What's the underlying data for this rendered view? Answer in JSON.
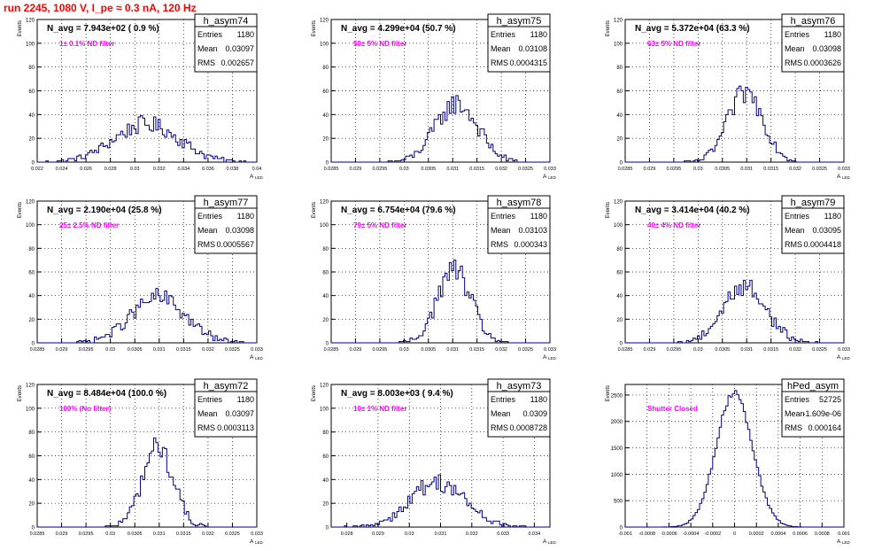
{
  "page_title": "run 2245,  1080 V, I_pe ≈ 0.3 nA, 120 Hz",
  "stats_labels": {
    "entries": "Entries",
    "mean": "Mean",
    "rms": "RMS"
  },
  "axis_text": {
    "ylabel": "Events",
    "xlabel": "A",
    "xlabel_sub": "LED"
  },
  "colors": {
    "title": "#ff0000",
    "annotation": "#ff00ff",
    "histogram": "#000080",
    "grid": "#000000"
  },
  "chart_data": [
    {
      "type": "histogram",
      "hist_name": "h_asym74",
      "summary": "N_avg = 7.943e+02 ( 0.9 %)",
      "annotation": "1± 0.1% ND filter",
      "entries": "1180",
      "mean": "0.03097",
      "rms": "0.002657",
      "xlim": [
        0.022,
        0.04
      ],
      "ylim": [
        0,
        120
      ],
      "yticks": [
        0,
        20,
        40,
        60,
        80,
        100,
        120
      ],
      "xticks": [
        "0.022",
        "0.024",
        "0.026",
        "0.028",
        "0.03",
        "0.032",
        "0.034",
        "0.036",
        "0.038",
        "0.04"
      ],
      "grid": true
    },
    {
      "type": "histogram",
      "hist_name": "h_asym75",
      "summary": "N_avg = 4.299e+04 (50.7 %)",
      "annotation": "50± 5% ND filter",
      "entries": "1180",
      "mean": "0.03108",
      "rms": "0.0004315",
      "xlim": [
        0.0285,
        0.033
      ],
      "ylim": [
        0,
        120
      ],
      "yticks": [
        0,
        20,
        40,
        60,
        80,
        100,
        120
      ],
      "xticks": [
        "0.0285",
        "0.029",
        "0.0295",
        "0.03",
        "0.0305",
        "0.031",
        "0.0315",
        "0.032",
        "0.0325",
        "0.033"
      ],
      "grid": true
    },
    {
      "type": "histogram",
      "hist_name": "h_asym76",
      "summary": "N_avg = 5.372e+04 (63.3 %)",
      "annotation": "63± 5% ND filter",
      "entries": "1180",
      "mean": "0.03098",
      "rms": "0.0003626",
      "xlim": [
        0.0285,
        0.033
      ],
      "ylim": [
        0,
        120
      ],
      "yticks": [
        0,
        20,
        40,
        60,
        80,
        100,
        120
      ],
      "xticks": [
        "0.0285",
        "0.029",
        "0.0295",
        "0.03",
        "0.0305",
        "0.031",
        "0.0315",
        "0.032",
        "0.0325",
        "0.033"
      ],
      "grid": true
    },
    {
      "type": "histogram",
      "hist_name": "h_asym77",
      "summary": "N_avg = 2.190e+04 (25.8 %)",
      "annotation": "25± 2.5% ND filter",
      "entries": "1180",
      "mean": "0.03098",
      "rms": "0.0005567",
      "xlim": [
        0.0285,
        0.033
      ],
      "ylim": [
        0,
        120
      ],
      "yticks": [
        0,
        20,
        40,
        60,
        80,
        100,
        120
      ],
      "xticks": [
        "0.0285",
        "0.029",
        "0.0295",
        "0.03",
        "0.0305",
        "0.031",
        "0.0315",
        "0.032",
        "0.0325",
        "0.033"
      ],
      "grid": true
    },
    {
      "type": "histogram",
      "hist_name": "h_asym78",
      "summary": "N_avg = 6.754e+04 (79.6 %)",
      "annotation": "79± 5% ND filter",
      "entries": "1180",
      "mean": "0.03103",
      "rms": "0.000343",
      "xlim": [
        0.0285,
        0.033
      ],
      "ylim": [
        0,
        120
      ],
      "yticks": [
        0,
        20,
        40,
        60,
        80,
        100,
        120
      ],
      "xticks": [
        "0.0285",
        "0.029",
        "0.0295",
        "0.03",
        "0.0305",
        "0.031",
        "0.0315",
        "0.032",
        "0.0325",
        "0.033"
      ],
      "grid": true
    },
    {
      "type": "histogram",
      "hist_name": "h_asym79",
      "summary": "N_avg = 3.414e+04 (40.2 %)",
      "annotation": "40± 4% ND filter",
      "entries": "1180",
      "mean": "0.03095",
      "rms": "0.0004418",
      "xlim": [
        0.0285,
        0.033
      ],
      "ylim": [
        0,
        120
      ],
      "yticks": [
        0,
        20,
        40,
        60,
        80,
        100,
        120
      ],
      "xticks": [
        "0.0285",
        "0.029",
        "0.0295",
        "0.03",
        "0.0305",
        "0.031",
        "0.0315",
        "0.032",
        "0.0325",
        "0.033"
      ],
      "grid": true
    },
    {
      "type": "histogram",
      "hist_name": "h_asym72",
      "summary": "N_avg = 8.484e+04 (100.0 %)",
      "annotation": "100% (No filter)",
      "entries": "1180",
      "mean": "0.03097",
      "rms": "0.0003113",
      "xlim": [
        0.0285,
        0.033
      ],
      "ylim": [
        0,
        120
      ],
      "yticks": [
        0,
        20,
        40,
        60,
        80,
        100,
        120
      ],
      "xticks": [
        "0.0285",
        "0.029",
        "0.0295",
        "0.03",
        "0.0305",
        "0.031",
        "0.0315",
        "0.032",
        "0.0325",
        "0.033"
      ],
      "grid": true
    },
    {
      "type": "histogram",
      "hist_name": "h_asym73",
      "summary": "N_avg = 8.003e+03 ( 9.4 %)",
      "annotation": "10± 1% ND filter",
      "entries": "1180",
      "mean": "0.0309",
      "rms": "0.0008728",
      "xlim": [
        0.0275,
        0.0345
      ],
      "ylim": [
        0,
        120
      ],
      "yticks": [
        0,
        20,
        40,
        60,
        80,
        100,
        120
      ],
      "xticks": [
        "0.028",
        "0.029",
        "0.03",
        "0.031",
        "0.032",
        "0.033",
        "0.034"
      ],
      "grid": true
    },
    {
      "type": "histogram",
      "hist_name": "hPed_asym",
      "summary": "",
      "annotation": "Shutter Closed",
      "entries": "52725",
      "mean": "-1.609e-06",
      "rms": "0.000164",
      "xlim": [
        -0.001,
        0.001
      ],
      "ylim": [
        0,
        2700
      ],
      "yticks": [
        0,
        500,
        1000,
        1500,
        2000,
        2500
      ],
      "xticks": [
        "-0.001",
        "-0.0008",
        "-0.0006",
        "-0.0004",
        "-0.0002",
        "0",
        "0.0002",
        "0.0004",
        "0.0006",
        "0.0008",
        "0.001"
      ],
      "grid": true
    }
  ]
}
